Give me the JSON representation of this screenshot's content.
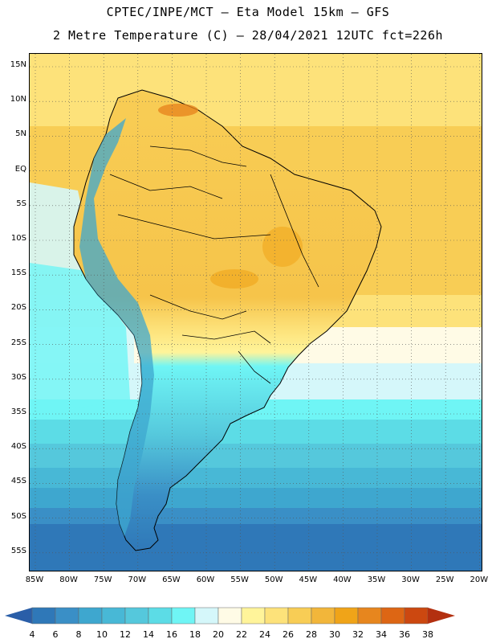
{
  "header": {
    "line1": "CPTEC/INPE/MCT –  Eta Model 15km – GFS",
    "line2": "2 Metre Temperature (C) – 28/04/2021 12UTC fct=226h"
  },
  "map": {
    "region": "South America",
    "variable": "2 Metre Temperature",
    "units": "C",
    "lat_labels": [
      "15N",
      "10N",
      "5N",
      "EQ",
      "5S",
      "10S",
      "15S",
      "20S",
      "25S",
      "30S",
      "35S",
      "40S",
      "45S",
      "50S",
      "55S"
    ],
    "lon_labels": [
      "85W",
      "80W",
      "75W",
      "70W",
      "65W",
      "60W",
      "55W",
      "50W",
      "45W",
      "40W",
      "35W",
      "30W",
      "25W",
      "20W"
    ]
  },
  "legend": {
    "levels": [
      "4",
      "6",
      "8",
      "10",
      "12",
      "14",
      "16",
      "18",
      "20",
      "22",
      "24",
      "26",
      "28",
      "30",
      "32",
      "34",
      "36",
      "38"
    ],
    "colors": [
      "#2a5ea8",
      "#2f78b8",
      "#3a8fc6",
      "#3ea7cf",
      "#48b8d6",
      "#55c8dc",
      "#5cdce6",
      "#6ff5f5",
      "#d5f7fa",
      "#fffbe6",
      "#fff49a",
      "#fde27a",
      "#f8cd55",
      "#f2b63a",
      "#f0a418",
      "#e7861e",
      "#dd6614",
      "#cc4810",
      "#b33010"
    ]
  }
}
